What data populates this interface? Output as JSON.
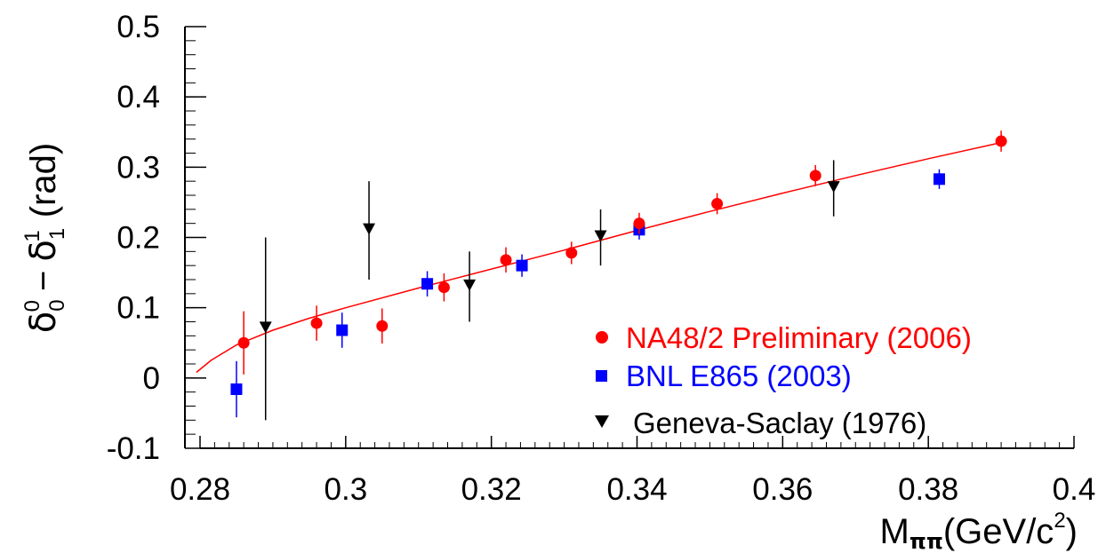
{
  "chart_data": {
    "type": "scatter",
    "title": "",
    "xlabel": "M_ππ(GeV/c²)",
    "xlabel_main": "M",
    "xlabel_sub": "ππ",
    "xlabel_rest": "(GeV/c",
    "xlabel_sup": "2",
    "xlabel_close": ")",
    "ylabel": "δ₀⁰ − δ₁¹ (rad)",
    "ylabel_delta": "δ",
    "ylabel_sub0": "0",
    "ylabel_sup0": "0",
    "ylabel_minus": "−",
    "ylabel_sub1": "1",
    "ylabel_sup1": "1",
    "ylabel_unit": "(rad)",
    "xlim": [
      0.28,
      0.4
    ],
    "ylim": [
      -0.1,
      0.5
    ],
    "x_ticks": [
      0.28,
      0.3,
      0.32,
      0.34,
      0.36,
      0.38,
      0.4
    ],
    "x_tick_labels": [
      "0.28",
      "0.3",
      "0.32",
      "0.34",
      "0.36",
      "0.38",
      "0.4"
    ],
    "y_ticks": [
      -0.1,
      0,
      0.1,
      0.2,
      0.3,
      0.4,
      0.5
    ],
    "y_tick_labels": [
      "-0.1",
      "0",
      "0.1",
      "0.2",
      "0.3",
      "0.4",
      "0.5"
    ],
    "grid": false,
    "legend_position": "bottom-right",
    "series": [
      {
        "name": "NA48/2 Preliminary (2006)",
        "color": "#ff0000",
        "marker": "circle",
        "points": [
          {
            "x": 0.286,
            "y": 0.05,
            "err": 0.045
          },
          {
            "x": 0.296,
            "y": 0.078,
            "err": 0.025
          },
          {
            "x": 0.305,
            "y": 0.074,
            "err": 0.025
          },
          {
            "x": 0.3135,
            "y": 0.129,
            "err": 0.02
          },
          {
            "x": 0.322,
            "y": 0.168,
            "err": 0.018
          },
          {
            "x": 0.331,
            "y": 0.178,
            "err": 0.016
          },
          {
            "x": 0.3403,
            "y": 0.22,
            "err": 0.015
          },
          {
            "x": 0.351,
            "y": 0.248,
            "err": 0.015
          },
          {
            "x": 0.3645,
            "y": 0.288,
            "err": 0.015
          },
          {
            "x": 0.39,
            "y": 0.337,
            "err": 0.015
          }
        ]
      },
      {
        "name": "BNL E865 (2003)",
        "color": "#0000ff",
        "marker": "square",
        "points": [
          {
            "x": 0.285,
            "y": -0.016,
            "err": 0.04
          },
          {
            "x": 0.2995,
            "y": 0.068,
            "err": 0.025
          },
          {
            "x": 0.3112,
            "y": 0.134,
            "err": 0.018
          },
          {
            "x": 0.3242,
            "y": 0.16,
            "err": 0.016
          },
          {
            "x": 0.3403,
            "y": 0.211,
            "err": 0.014
          },
          {
            "x": 0.3815,
            "y": 0.283,
            "err": 0.014
          }
        ]
      },
      {
        "name": "Geneva-Saclay (1976)",
        "color": "#000000",
        "marker": "triangle-down",
        "points": [
          {
            "x": 0.289,
            "y": 0.07,
            "err_low": 0.13,
            "err_high": 0.13
          },
          {
            "x": 0.3032,
            "y": 0.21,
            "err_low": 0.07,
            "err_high": 0.07
          },
          {
            "x": 0.317,
            "y": 0.13,
            "err_low": 0.05,
            "err_high": 0.05
          },
          {
            "x": 0.335,
            "y": 0.2,
            "err_low": 0.04,
            "err_high": 0.04
          },
          {
            "x": 0.367,
            "y": 0.27,
            "err_low": 0.04,
            "err_high": 0.04
          }
        ]
      }
    ],
    "curve": {
      "color": "#ff0000",
      "x": [
        0.2795,
        0.2815,
        0.285,
        0.29,
        0.295,
        0.3,
        0.31,
        0.32,
        0.33,
        0.34,
        0.35,
        0.36,
        0.37,
        0.38,
        0.39
      ],
      "y": [
        0.008,
        0.025,
        0.047,
        0.068,
        0.085,
        0.1,
        0.128,
        0.155,
        0.182,
        0.21,
        0.237,
        0.263,
        0.288,
        0.312,
        0.335
      ]
    }
  }
}
